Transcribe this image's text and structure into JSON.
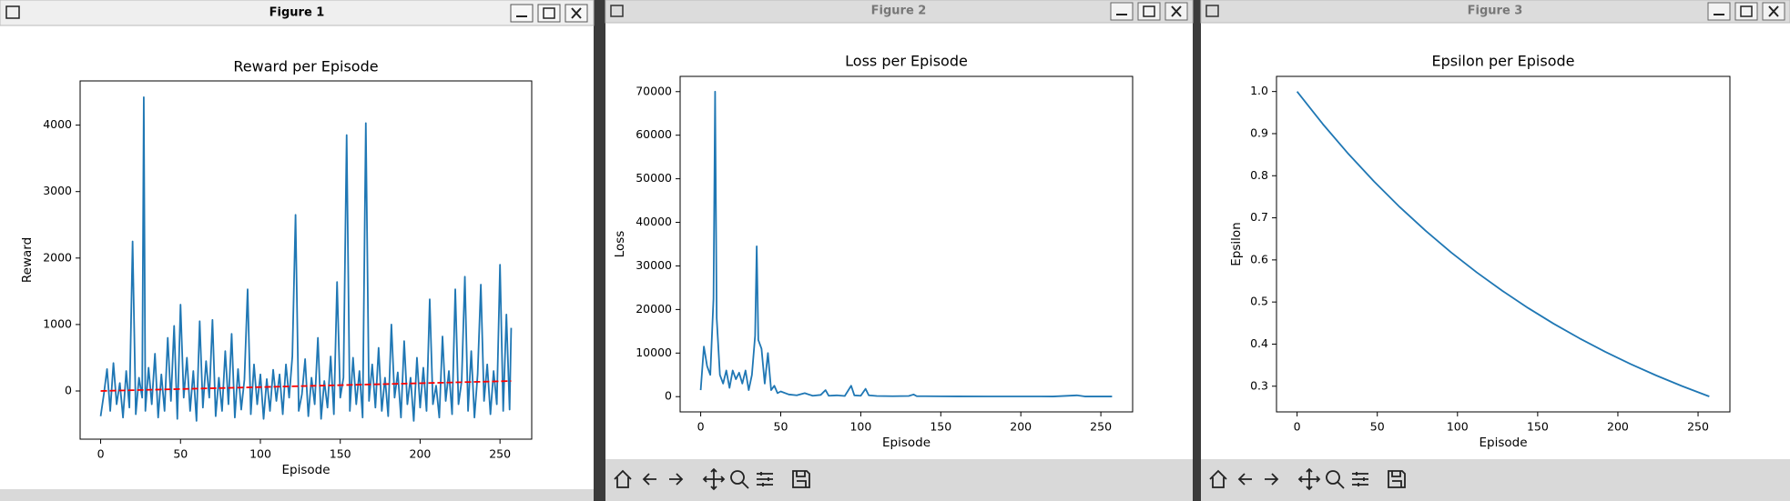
{
  "windows": [
    {
      "title": "Figure 1"
    },
    {
      "title": "Figure 2"
    },
    {
      "title": "Figure 3"
    }
  ],
  "chart_data": [
    {
      "type": "line",
      "title": "Reward per Episode",
      "xlabel": "Episode",
      "ylabel": "Reward",
      "xlim": [
        -12.85,
        269.85
      ],
      "xticks": [
        0,
        50,
        100,
        150,
        200,
        250
      ],
      "ylim": [
        -725,
        4665
      ],
      "yticks": [
        0,
        1000,
        2000,
        3000,
        4000
      ],
      "series": [
        {
          "color": "#1f77b4",
          "linestyle": "solid",
          "x": [
            0,
            2,
            4,
            6,
            8,
            10,
            12,
            14,
            16,
            18,
            20,
            22,
            24,
            26,
            27,
            28,
            30,
            32,
            34,
            36,
            38,
            40,
            42,
            44,
            46,
            48,
            50,
            52,
            54,
            56,
            58,
            60,
            62,
            64,
            66,
            68,
            70,
            72,
            74,
            76,
            78,
            80,
            82,
            84,
            86,
            88,
            90,
            92,
            94,
            96,
            98,
            100,
            102,
            104,
            106,
            108,
            110,
            112,
            114,
            116,
            118,
            120,
            122,
            124,
            126,
            128,
            130,
            132,
            134,
            136,
            138,
            140,
            142,
            144,
            146,
            148,
            150,
            152,
            154,
            156,
            158,
            160,
            162,
            164,
            166,
            168,
            170,
            172,
            174,
            176,
            178,
            180,
            182,
            184,
            186,
            188,
            190,
            192,
            194,
            196,
            198,
            200,
            202,
            204,
            206,
            208,
            210,
            212,
            214,
            216,
            218,
            220,
            222,
            224,
            226,
            228,
            230,
            232,
            234,
            236,
            238,
            240,
            242,
            244,
            246,
            248,
            250,
            252,
            254,
            256,
            257
          ],
          "values": [
            -380,
            -50,
            330,
            -300,
            420,
            -200,
            120,
            -400,
            300,
            -250,
            2250,
            -350,
            200,
            -100,
            4420,
            -300,
            350,
            -200,
            560,
            -400,
            250,
            -300,
            800,
            -150,
            980,
            -420,
            1300,
            -100,
            500,
            -300,
            300,
            -450,
            1050,
            -250,
            450,
            -100,
            1070,
            -380,
            200,
            -300,
            600,
            -200,
            860,
            -400,
            330,
            -280,
            170,
            1530,
            -350,
            400,
            -200,
            250,
            -420,
            180,
            -300,
            320,
            -150,
            250,
            -350,
            400,
            -100,
            520,
            2650,
            -300,
            -50,
            480,
            -380,
            200,
            -200,
            800,
            -420,
            150,
            -250,
            520,
            -350,
            1640,
            -100,
            200,
            3850,
            -300,
            500,
            -200,
            300,
            -400,
            4030,
            -150,
            400,
            -250,
            650,
            -300,
            200,
            -380,
            1000,
            -100,
            280,
            -400,
            750,
            -200,
            200,
            -450,
            500,
            -250,
            350,
            -300,
            1380,
            -200,
            80,
            -400,
            820,
            -150,
            300,
            -350,
            1530,
            -200,
            150,
            1720,
            -300,
            600,
            -400,
            250,
            1600,
            -150,
            400,
            -350,
            300,
            -200,
            1900,
            -300,
            1150,
            -280,
            950
          ]
        },
        {
          "color": "#ff0000",
          "linestyle": "dashed",
          "x": [
            0,
            257
          ],
          "values": [
            0,
            150
          ]
        }
      ]
    },
    {
      "type": "line",
      "title": "Loss per Episode",
      "xlabel": "Episode",
      "ylabel": "Loss",
      "xlim": [
        -12.85,
        269.85
      ],
      "xticks": [
        0,
        50,
        100,
        150,
        200,
        250
      ],
      "ylim": [
        -3500,
        73500
      ],
      "yticks": [
        0,
        10000,
        20000,
        30000,
        40000,
        50000,
        60000,
        70000
      ],
      "series": [
        {
          "color": "#1f77b4",
          "linestyle": "solid",
          "x": [
            0,
            2,
            4,
            6,
            8,
            9,
            10,
            12,
            14,
            16,
            18,
            20,
            22,
            24,
            26,
            28,
            30,
            32,
            34,
            35,
            36,
            38,
            40,
            42,
            44,
            46,
            48,
            50,
            55,
            60,
            65,
            70,
            75,
            78,
            80,
            85,
            90,
            94,
            96,
            100,
            103,
            105,
            110,
            120,
            130,
            133,
            135,
            140,
            150,
            160,
            180,
            200,
            220,
            235,
            240,
            257
          ],
          "values": [
            1500,
            11500,
            7000,
            5000,
            22500,
            70000,
            18000,
            5000,
            3000,
            6000,
            2000,
            6000,
            4000,
            5500,
            3000,
            6000,
            1500,
            5000,
            14000,
            34500,
            13000,
            11000,
            3000,
            10000,
            1500,
            2500,
            800,
            1200,
            500,
            300,
            800,
            200,
            400,
            1500,
            200,
            300,
            150,
            2500,
            300,
            200,
            1800,
            300,
            150,
            100,
            150,
            500,
            100,
            100,
            80,
            60,
            50,
            50,
            40,
            300,
            40,
            30
          ]
        }
      ]
    },
    {
      "type": "line",
      "title": "Epsilon per Episode",
      "xlabel": "Episode",
      "ylabel": "Epsilon",
      "xlim": [
        -12.85,
        269.85
      ],
      "xticks": [
        0,
        50,
        100,
        150,
        200,
        250
      ],
      "ylim": [
        0.239,
        1.036
      ],
      "yticks": [
        0.3,
        0.4,
        0.5,
        0.6,
        0.7,
        0.8,
        0.9,
        {
          "value": 1,
          "label": "1.0"
        }
      ],
      "series": [
        {
          "color": "#1f77b4",
          "linestyle": "solid",
          "x": [
            0,
            16,
            32,
            48,
            64,
            80,
            96,
            112,
            128,
            144,
            160,
            176,
            192,
            208,
            224,
            240,
            256,
            257
          ],
          "values": [
            1.0,
            0.9229,
            0.8518,
            0.7862,
            0.7256,
            0.6697,
            0.618,
            0.5704,
            0.5265,
            0.4859,
            0.4484,
            0.4139,
            0.382,
            0.3525,
            0.3254,
            0.3003,
            0.2771,
            0.2757
          ]
        }
      ]
    }
  ]
}
